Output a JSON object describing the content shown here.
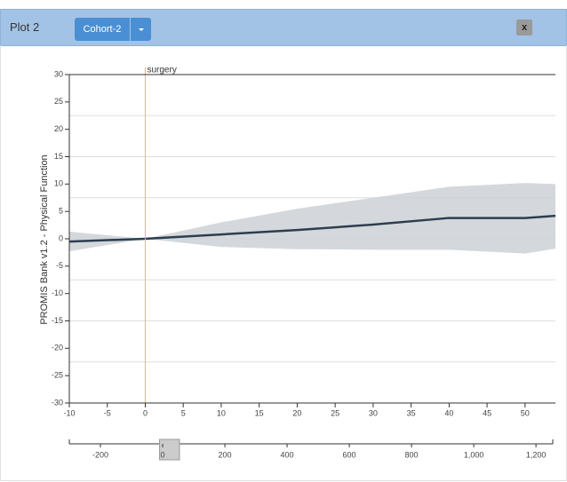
{
  "header": {
    "title": "Plot 2",
    "cohort": "Cohort-2",
    "close": "x"
  },
  "chart_data": {
    "type": "line",
    "y_label": "PROMIS Bank v1.2 - Physical Function",
    "annotation": {
      "label": "surgery",
      "x": 0,
      "color": "#f0b07a"
    },
    "x": [
      -10,
      0,
      10,
      20,
      30,
      40,
      50,
      54
    ],
    "series": [
      {
        "color": "#2c3e50",
        "band_color": "#ccd1d6",
        "values": [
          -0.5,
          0,
          0.8,
          1.6,
          2.6,
          3.8,
          3.8,
          4.2
        ],
        "upper": [
          1.3,
          0,
          3,
          5.5,
          7.5,
          9.5,
          10.2,
          10
        ],
        "lower": [
          -2.3,
          0,
          -1.5,
          -1.9,
          -2,
          -2,
          -2.7,
          -1.8
        ]
      }
    ],
    "xlim": [
      -10,
      54
    ],
    "xticks": [
      -10,
      -5,
      0,
      5,
      10,
      15,
      20,
      25,
      30,
      35,
      40,
      45,
      50
    ],
    "ylim": [
      -30,
      30
    ],
    "yticks": [
      -30,
      -25,
      -20,
      -15,
      -10,
      -5,
      0,
      5,
      10,
      15,
      20,
      25,
      30
    ],
    "ygrid": [
      -22.5,
      -15,
      -7.5,
      0,
      7.5,
      15,
      22.5
    ],
    "brush": {
      "xlim": [
        -300,
        1254
      ],
      "xticks": [
        -200,
        0,
        200,
        400,
        600,
        800,
        {
          "value": 1000,
          "label": "1,000"
        },
        {
          "value": 1200,
          "label": "1,200"
        }
      ]
    }
  }
}
